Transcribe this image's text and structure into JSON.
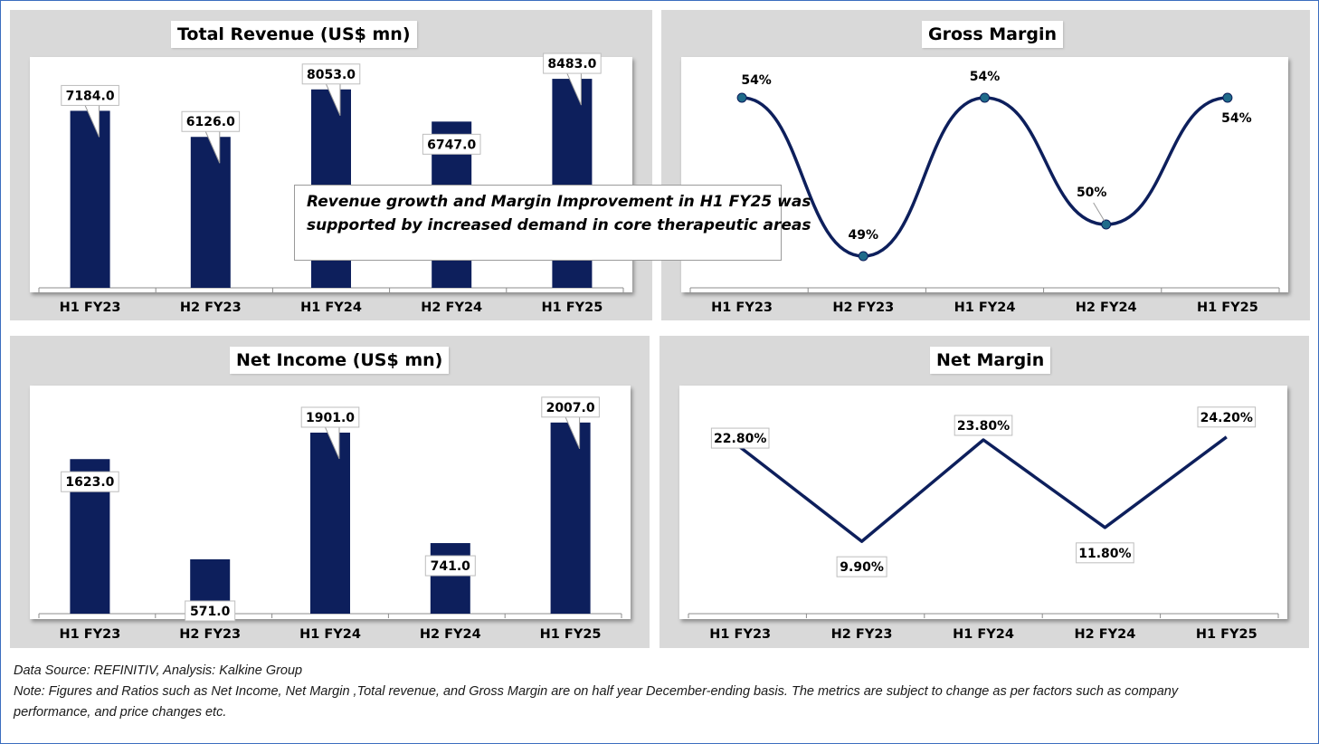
{
  "colors": {
    "bar": "#0d1f5c",
    "line": "#0d1f5c",
    "marker": "#1f6b8a",
    "panel_bg": "#d9d9d9"
  },
  "callout": {
    "line1": "Revenue growth and Margin Improvement in H1 FY25 was",
    "line2": "supported by increased demand in core therapeutic areas"
  },
  "footer": {
    "source": "Data Source: REFINITIV, Analysis: Kalkine Group",
    "note_line1": "Note: Figures and Ratios such as Net Income, Net Margin ,Total revenue, and Gross Margin are on half year December-ending basis. The metrics are subject to change as per factors such as company",
    "note_line2": "performance, and price changes etc."
  },
  "chart_data": [
    {
      "id": "total-revenue",
      "type": "bar",
      "title": "Total Revenue (US$ mn)",
      "categories": [
        "H1 FY23",
        "H2 FY23",
        "H1 FY24",
        "H2 FY24",
        "H1 FY25"
      ],
      "values": [
        7184.0,
        6126.0,
        8053.0,
        6747.0,
        8483.0
      ],
      "labels": [
        "7184.0",
        "6126.0",
        "8053.0",
        "6747.0",
        "8483.0"
      ],
      "ylim": [
        0,
        9000
      ]
    },
    {
      "id": "gross-margin",
      "type": "line",
      "title": "Gross Margin",
      "categories": [
        "H1 FY23",
        "H2 FY23",
        "H1 FY24",
        "H2 FY24",
        "H1 FY25"
      ],
      "values": [
        54,
        49,
        54,
        50,
        54
      ],
      "labels": [
        "54%",
        "49%",
        "54%",
        "50%",
        "54%"
      ],
      "ylim": [
        48,
        55
      ]
    },
    {
      "id": "net-income",
      "type": "bar",
      "title": "Net Income (US$ mn)",
      "categories": [
        "H1 FY23",
        "H2 FY23",
        "H1 FY24",
        "H2 FY24",
        "H1 FY25"
      ],
      "values": [
        1623.0,
        571.0,
        1901.0,
        741.0,
        2007.0
      ],
      "labels": [
        "1623.0",
        "571.0",
        "1901.0",
        "741.0",
        "2007.0"
      ],
      "ylim": [
        0,
        2300
      ]
    },
    {
      "id": "net-margin",
      "type": "line",
      "title": "Net Margin",
      "categories": [
        "H1 FY23",
        "H2 FY23",
        "H1 FY24",
        "H2 FY24",
        "H1 FY25"
      ],
      "values": [
        22.8,
        9.9,
        23.8,
        11.8,
        24.2
      ],
      "labels": [
        "22.80%",
        "9.90%",
        "23.80%",
        "11.80%",
        "24.20%"
      ],
      "ylim": [
        0,
        30
      ]
    }
  ]
}
